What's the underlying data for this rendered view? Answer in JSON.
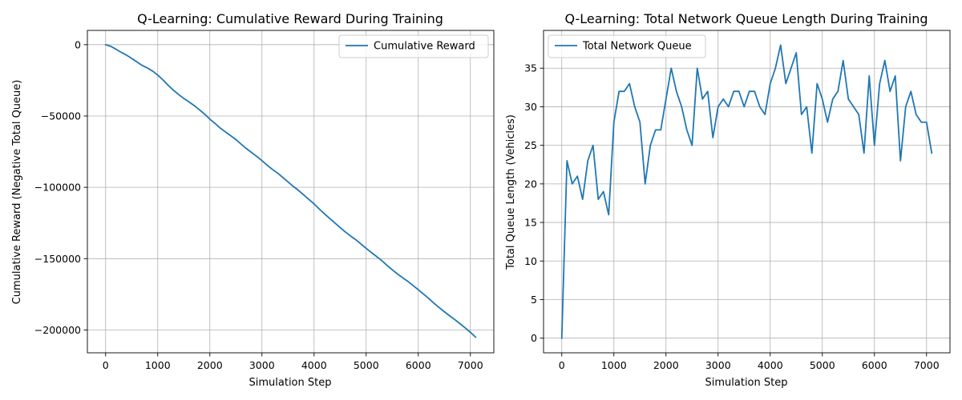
{
  "chart_data": [
    {
      "type": "line",
      "title": "Q-Learning: Cumulative Reward During Training",
      "xlabel": "Simulation Step",
      "ylabel": "Cumulative Reward (Negative Total Queue)",
      "xlim": [
        -350,
        7450
      ],
      "ylim": [
        -216000,
        10000
      ],
      "xticks": [
        0,
        1000,
        2000,
        3000,
        4000,
        5000,
        6000,
        7000
      ],
      "xtick_labels": [
        "0",
        "1000",
        "2000",
        "3000",
        "4000",
        "5000",
        "6000",
        "7000"
      ],
      "yticks": [
        0,
        -50000,
        -100000,
        -150000,
        -200000
      ],
      "ytick_labels": [
        "0",
        "−50000",
        "−100000",
        "−150000",
        "−200000"
      ],
      "grid": true,
      "legend_position": "top-right",
      "series": [
        {
          "name": "Cumulative Reward",
          "color": "#1f77b4",
          "x": [
            0,
            100,
            200,
            300,
            400,
            500,
            600,
            700,
            800,
            900,
            1000,
            1100,
            1200,
            1300,
            1400,
            1500,
            1600,
            1700,
            1800,
            1900,
            2000,
            2100,
            2200,
            2300,
            2400,
            2500,
            2600,
            2700,
            2800,
            2900,
            3000,
            3100,
            3200,
            3300,
            3400,
            3500,
            3600,
            3700,
            3800,
            3900,
            4000,
            4100,
            4200,
            4300,
            4400,
            4500,
            4600,
            4700,
            4800,
            4900,
            5000,
            5100,
            5200,
            5300,
            5400,
            5500,
            5600,
            5700,
            5800,
            5900,
            6000,
            6100,
            6200,
            6300,
            6400,
            6500,
            6600,
            6700,
            6800,
            6900,
            7000,
            7100
          ],
          "values": [
            0,
            -1200,
            -3200,
            -5400,
            -7300,
            -9600,
            -12100,
            -14500,
            -16300,
            -18500,
            -21300,
            -24700,
            -28500,
            -31900,
            -34900,
            -37700,
            -40100,
            -42700,
            -45600,
            -48700,
            -52200,
            -55200,
            -58500,
            -61200,
            -63800,
            -66500,
            -69700,
            -72800,
            -75600,
            -78300,
            -81300,
            -84500,
            -87400,
            -90000,
            -93100,
            -96200,
            -99300,
            -102100,
            -105300,
            -108400,
            -111600,
            -115200,
            -118600,
            -121800,
            -125000,
            -128200,
            -131300,
            -134100,
            -136700,
            -139700,
            -142800,
            -145700,
            -148500,
            -151400,
            -154700,
            -157800,
            -160700,
            -163400,
            -165900,
            -168800,
            -171800,
            -174800,
            -177900,
            -181200,
            -184300,
            -187200,
            -190000,
            -192700,
            -195600,
            -198500,
            -201600,
            -205000
          ]
        }
      ]
    },
    {
      "type": "line",
      "title": "Q-Learning: Total Network Queue Length During Training",
      "xlabel": "Simulation Step",
      "ylabel": "Total Queue Length (Vehicles)",
      "xlim": [
        -350,
        7450
      ],
      "ylim": [
        -1.9,
        39.9
      ],
      "xticks": [
        0,
        1000,
        2000,
        3000,
        4000,
        5000,
        6000,
        7000
      ],
      "xtick_labels": [
        "0",
        "1000",
        "2000",
        "3000",
        "4000",
        "5000",
        "6000",
        "7000"
      ],
      "yticks": [
        0,
        5,
        10,
        15,
        20,
        25,
        30,
        35
      ],
      "ytick_labels": [
        "0",
        "5",
        "10",
        "15",
        "20",
        "25",
        "30",
        "35"
      ],
      "grid": true,
      "legend_position": "top-left",
      "series": [
        {
          "name": "Total Network Queue",
          "color": "#1f77b4",
          "x": [
            0,
            100,
            200,
            300,
            400,
            500,
            600,
            700,
            800,
            900,
            1000,
            1100,
            1200,
            1300,
            1400,
            1500,
            1600,
            1700,
            1800,
            1900,
            2000,
            2100,
            2200,
            2300,
            2400,
            2500,
            2600,
            2700,
            2800,
            2900,
            3000,
            3100,
            3200,
            3300,
            3400,
            3500,
            3600,
            3700,
            3800,
            3900,
            4000,
            4100,
            4200,
            4300,
            4400,
            4500,
            4600,
            4700,
            4800,
            4900,
            5000,
            5100,
            5200,
            5300,
            5400,
            5500,
            5600,
            5700,
            5800,
            5900,
            6000,
            6100,
            6200,
            6300,
            6400,
            6500,
            6600,
            6700,
            6800,
            6900,
            7000,
            7100
          ],
          "values": [
            0,
            23,
            20,
            21,
            18,
            23,
            25,
            18,
            19,
            16,
            28,
            32,
            32,
            33,
            30,
            28,
            20,
            25,
            27,
            27,
            31,
            35,
            32,
            30,
            27,
            25,
            35,
            31,
            32,
            26,
            30,
            31,
            30,
            32,
            32,
            30,
            32,
            32,
            30,
            29,
            33,
            35,
            38,
            33,
            35,
            37,
            29,
            30,
            24,
            33,
            31,
            28,
            31,
            32,
            36,
            31,
            30,
            29,
            24,
            34,
            25,
            33,
            36,
            32,
            34,
            23,
            30,
            32,
            29,
            28,
            28,
            24
          ]
        }
      ]
    }
  ]
}
